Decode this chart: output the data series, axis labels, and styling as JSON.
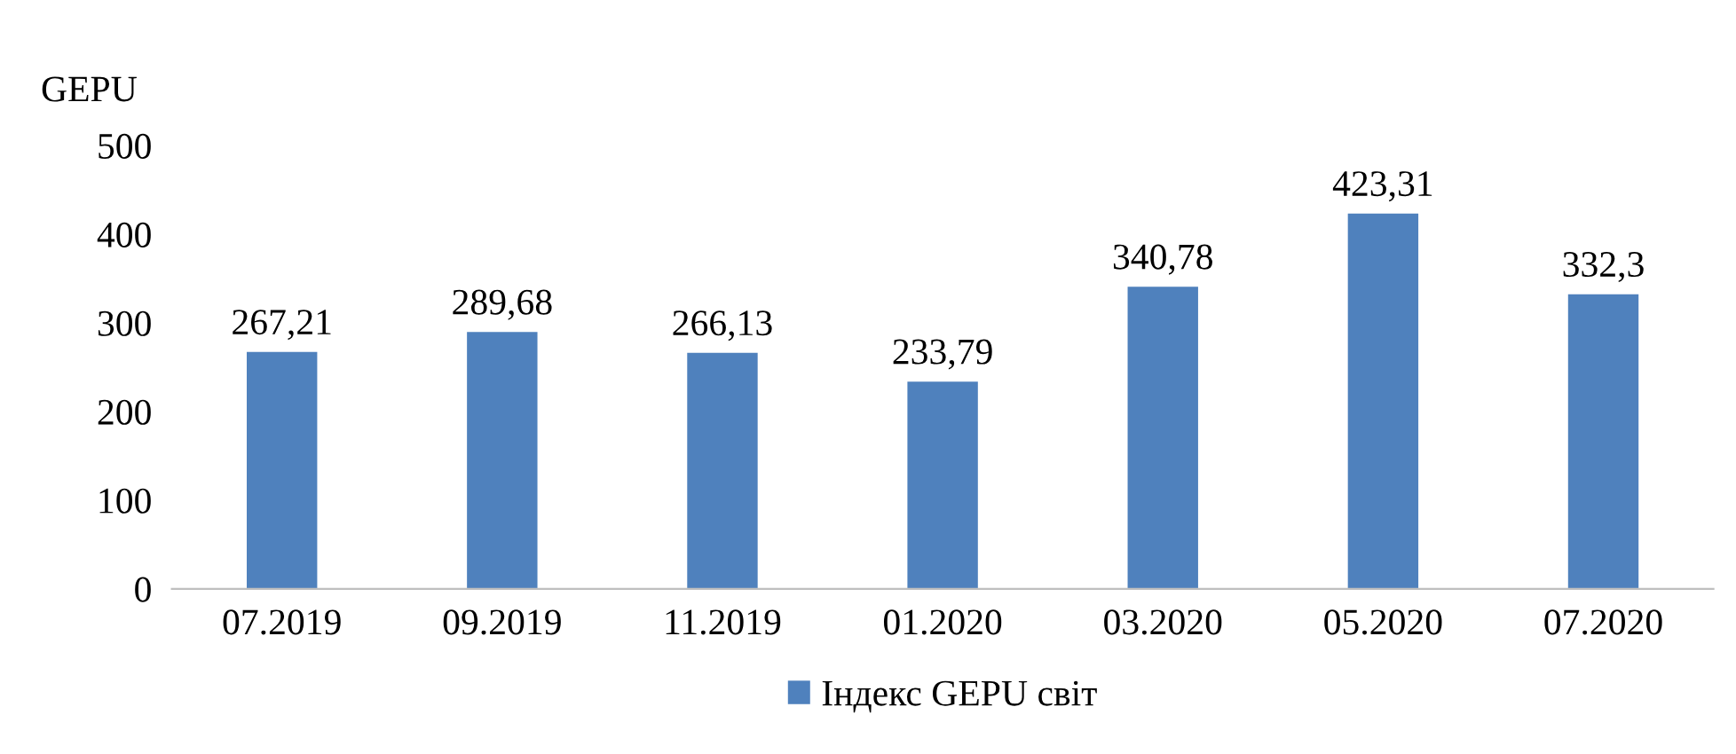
{
  "chart_data": {
    "type": "bar",
    "ylabel": "GEPU",
    "categories": [
      "07.2019",
      "09.2019",
      "11.2019",
      "01.2020",
      "03.2020",
      "05.2020",
      "07.2020"
    ],
    "series": [
      {
        "name": "Індекс GEPU світ",
        "color": "#4f81bd",
        "values": [
          267.21,
          289.68,
          266.13,
          233.79,
          340.78,
          423.31,
          332.3
        ],
        "value_labels": [
          "267,21",
          "289,68",
          "266,13",
          "233,79",
          "340,78",
          "423,31",
          "332,3"
        ]
      }
    ],
    "ylim": [
      0,
      500
    ],
    "yticks": [
      0,
      100,
      200,
      300,
      400,
      500
    ],
    "grid": false,
    "legend": "bottom"
  }
}
